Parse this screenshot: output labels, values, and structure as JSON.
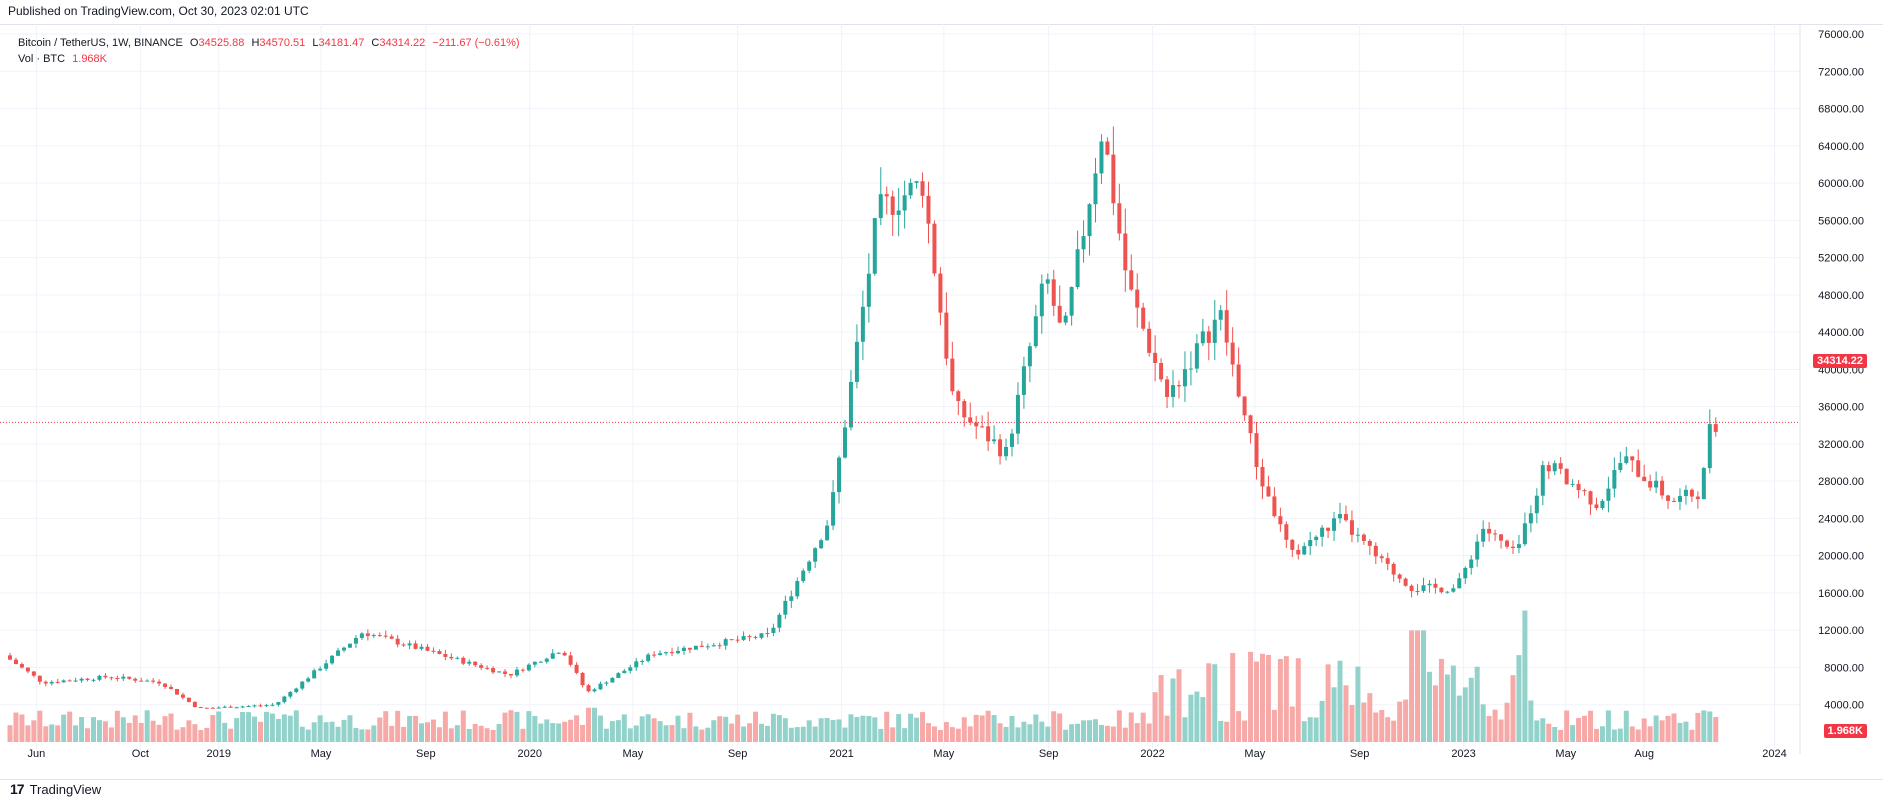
{
  "header": {
    "published": "Published on TradingView.com, Oct 30, 2023 02:01 UTC"
  },
  "legend": {
    "symbol": "Bitcoin / TetherUS, 1W, BINANCE",
    "o_label": "O",
    "o": "34525.88",
    "h_label": "H",
    "h": "34570.51",
    "l_label": "L",
    "l": "34181.47",
    "c_label": "C",
    "c": "34314.22",
    "change": "−211.67 (−0.61%)",
    "vol_label": "Vol · BTC",
    "vol": "1.968K"
  },
  "price_badge": "34314.22",
  "vol_badge": "1.968K",
  "footer": {
    "logo": "17",
    "brand": "TradingView"
  },
  "colors": {
    "up": "#26a69a",
    "down": "#ef5350",
    "vol_up": "#93d2ca",
    "vol_down": "#f7a9a7",
    "last": "#f23645"
  },
  "chart_data": {
    "type": "candlestick",
    "title": "Bitcoin / TetherUS, 1W, BINANCE",
    "y_axis": {
      "side": "right",
      "ticks": [
        "4000.00",
        "8000.00",
        "12000.00",
        "16000.00",
        "20000.00",
        "24000.00",
        "28000.00",
        "32000.00",
        "36000.00",
        "40000.00",
        "44000.00",
        "48000.00",
        "52000.00",
        "56000.00",
        "60000.00",
        "64000.00",
        "68000.00",
        "72000.00",
        "76000.00"
      ],
      "range": [
        0,
        78000
      ]
    },
    "x_axis": {
      "ticks": [
        "Jun",
        "Oct",
        "2019",
        "May",
        "Sep",
        "2020",
        "May",
        "Sep",
        "2021",
        "May",
        "Sep",
        "2022",
        "May",
        "Sep",
        "2023",
        "May",
        "Aug",
        "2024"
      ]
    },
    "last_price": 34314.22,
    "volume_last": "1.968K",
    "price_anchors": [
      [
        "2018-05-01",
        9300
      ],
      [
        "2018-06-15",
        6400
      ],
      [
        "2018-09-01",
        7000
      ],
      [
        "2018-11-01",
        6400
      ],
      [
        "2018-12-15",
        3600
      ],
      [
        "2019-03-15",
        4000
      ],
      [
        "2019-06-26",
        11800
      ],
      [
        "2019-09-01",
        10000
      ],
      [
        "2019-12-15",
        7200
      ],
      [
        "2020-02-15",
        10000
      ],
      [
        "2020-03-15",
        5300
      ],
      [
        "2020-06-01",
        9500
      ],
      [
        "2020-10-15",
        11500
      ],
      [
        "2020-12-25",
        24000
      ],
      [
        "2021-01-15",
        36000
      ],
      [
        "2021-02-20",
        57000
      ],
      [
        "2021-04-13",
        60000
      ],
      [
        "2021-05-20",
        36000
      ],
      [
        "2021-07-20",
        31000
      ],
      [
        "2021-09-05",
        50000
      ],
      [
        "2021-09-25",
        43000
      ],
      [
        "2021-11-10",
        66000
      ],
      [
        "2021-12-10",
        49000
      ],
      [
        "2022-01-25",
        37000
      ],
      [
        "2022-03-28",
        46000
      ],
      [
        "2022-05-12",
        29000
      ],
      [
        "2022-06-20",
        20000
      ],
      [
        "2022-08-15",
        24000
      ],
      [
        "2022-10-01",
        19500
      ],
      [
        "2022-11-10",
        16500
      ],
      [
        "2022-12-31",
        16500
      ],
      [
        "2023-01-31",
        23000
      ],
      [
        "2023-03-10",
        20000
      ],
      [
        "2023-04-14",
        30000
      ],
      [
        "2023-06-15",
        25500
      ],
      [
        "2023-07-14",
        30500
      ],
      [
        "2023-09-10",
        25800
      ],
      [
        "2023-10-15",
        27000
      ],
      [
        "2023-10-23",
        34500
      ],
      [
        "2023-10-30",
        34314
      ]
    ]
  }
}
